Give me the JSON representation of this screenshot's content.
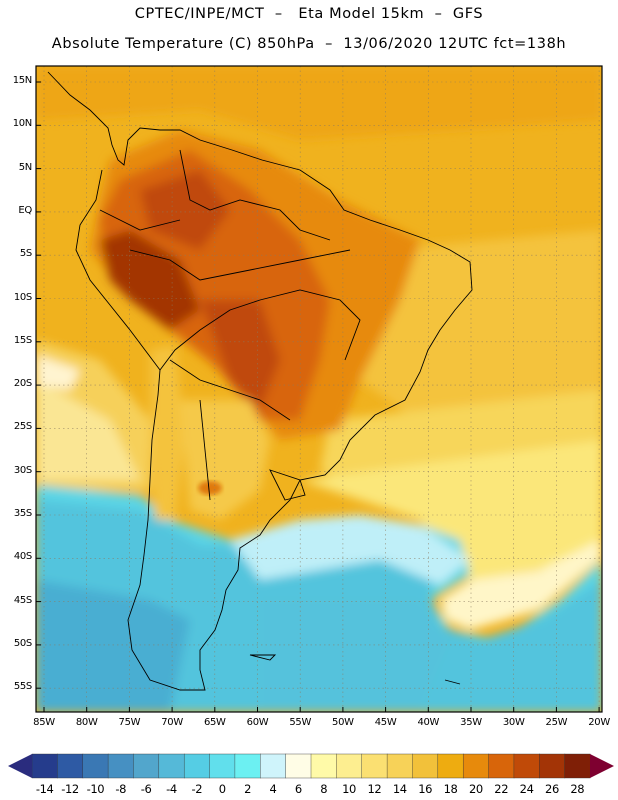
{
  "header": {
    "line1": "CPTEC/INPE/MCT  –   Eta Model 15km  –  GFS",
    "line2": "Absolute Temperature (C) 850hPa  –  13/06/2020 12UTC fct=138h"
  },
  "map": {
    "region": "South America",
    "variable": "Absolute Temperature",
    "units": "C",
    "level": "850hPa",
    "model": "Eta Model 15km",
    "driver": "GFS",
    "init": "13/06/2020 12UTC",
    "forecast": "fct=138h"
  },
  "axes": {
    "lat_labels": [
      "15N",
      "10N",
      "5N",
      "EQ",
      "5S",
      "10S",
      "15S",
      "20S",
      "25S",
      "30S",
      "35S",
      "40S",
      "45S",
      "50S",
      "55S"
    ],
    "lon_labels": [
      "85W",
      "80W",
      "75W",
      "70W",
      "65W",
      "60W",
      "55W",
      "50W",
      "45W",
      "40W",
      "35W",
      "30W",
      "25W",
      "20W"
    ]
  },
  "colorbar": {
    "labels": [
      "-14",
      "-12",
      "-10",
      "-8",
      "-6",
      "-4",
      "-2",
      "0",
      "2",
      "4",
      "6",
      "8",
      "10",
      "12",
      "14",
      "16",
      "18",
      "20",
      "22",
      "24",
      "26",
      "28"
    ],
    "colors": [
      "#253c8c",
      "#2e5aa4",
      "#3a78b4",
      "#4690c2",
      "#52a6cc",
      "#55b9d8",
      "#55cde4",
      "#61dfec",
      "#6cf0f2",
      "#cff4fb",
      "#fffde6",
      "#fffaa8",
      "#fdee90",
      "#fbe072",
      "#f7d258",
      "#f2c13a",
      "#eeac10",
      "#e78a0c",
      "#d8650a",
      "#c04a08",
      "#a33406",
      "#7f1f06"
    ],
    "under_color": "#2a2c7e",
    "over_color": "#7e0030"
  }
}
